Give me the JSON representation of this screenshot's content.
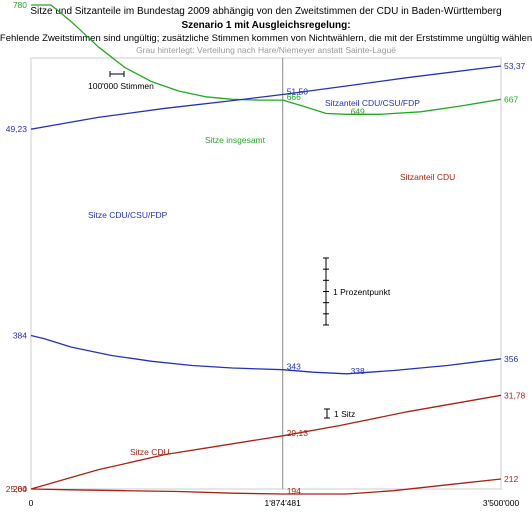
{
  "chart_data": {
    "type": "line",
    "title": "Sitze und Sitzanteile im Bundestag 2009 abhängig von den Zweitstimmen der CDU in Baden-Württemberg",
    "subtitle": "Szenario 1 mit Ausgleichsregelung:",
    "subtitle2": "Fehlende Zweitstimmen sind ungültig; zusätzliche Stimmen kommen von Nichtwählern, die mit der Erststimme ungültig wählen",
    "note": "Grau hinterlegt: Verteilung nach Hare/Niemeyer anstatt Sainte-Laguë",
    "x_ticks": [
      "0",
      "1'874'481",
      "3'500'000"
    ],
    "xlim": [
      0,
      3500000
    ],
    "marker_x": 1874481,
    "legend_stimmen": "100'000 Stimmen",
    "legend_prozent": "1 Prozentpunkt",
    "legend_sitz": "1 Sitz",
    "colors": {
      "green": "#22aa22",
      "blue": "#2233bb",
      "red": "#aa2211",
      "gray": "#bbbbbb",
      "grid": "#cccccc"
    },
    "series": [
      {
        "name": "Sitze insgesamt",
        "color": "#22aa22",
        "unit": "seats",
        "points": [
          [
            0,
            780
          ],
          [
            150000,
            780
          ],
          [
            300000,
            760
          ],
          [
            500000,
            730
          ],
          [
            700000,
            705
          ],
          [
            900000,
            688
          ],
          [
            1100000,
            677
          ],
          [
            1300000,
            670
          ],
          [
            1500000,
            667
          ],
          [
            1700000,
            666
          ],
          [
            1874481,
            666
          ],
          [
            2000000,
            660
          ],
          [
            2200000,
            650
          ],
          [
            2350000,
            649
          ],
          [
            2600000,
            649
          ],
          [
            2900000,
            652
          ],
          [
            3200000,
            659
          ],
          [
            3500000,
            667
          ]
        ],
        "labels": [
          {
            "text": "780",
            "x": 0,
            "y": 780
          },
          {
            "text": "666",
            "x": 1874481,
            "y": 666
          },
          {
            "text": "649",
            "x": 2350000,
            "y": 649
          },
          {
            "text": "667",
            "x": 3500000,
            "y": 667
          }
        ]
      },
      {
        "name": "Sitze CDU/CSU/FDP",
        "color": "#2233bb",
        "unit": "seats",
        "points": [
          [
            0,
            384
          ],
          [
            100000,
            380
          ],
          [
            300000,
            370
          ],
          [
            600000,
            360
          ],
          [
            900000,
            353
          ],
          [
            1200000,
            348
          ],
          [
            1500000,
            345
          ],
          [
            1874481,
            343
          ],
          [
            2100000,
            340
          ],
          [
            2350000,
            338
          ],
          [
            2700000,
            342
          ],
          [
            3100000,
            348
          ],
          [
            3500000,
            356
          ]
        ],
        "labels": [
          {
            "text": "384",
            "x": 0,
            "y": 384
          },
          {
            "text": "343",
            "x": 1874481,
            "y": 343
          },
          {
            "text": "338",
            "x": 2350000,
            "y": 338
          },
          {
            "text": "356",
            "x": 3500000,
            "y": 356
          }
        ]
      },
      {
        "name": "Sitze CDU",
        "color": "#aa2211",
        "unit": "seats",
        "points": [
          [
            0,
            200
          ],
          [
            300000,
            199
          ],
          [
            700000,
            198
          ],
          [
            1100000,
            197
          ],
          [
            1500000,
            195
          ],
          [
            1874481,
            194
          ],
          [
            2300000,
            194
          ],
          [
            2350000,
            194
          ],
          [
            2700000,
            198
          ],
          [
            3100000,
            205
          ],
          [
            3500000,
            212
          ]
        ],
        "labels": [
          {
            "text": "200",
            "x": 0,
            "y": 200
          },
          {
            "text": "194",
            "x": 1874481,
            "y": 194
          },
          {
            "text": "212",
            "x": 3500000,
            "y": 212
          }
        ]
      },
      {
        "name": "Sitzanteil CDU/CSU/FDP",
        "color": "#2233bb",
        "unit": "percent",
        "points": [
          [
            0,
            49.23
          ],
          [
            500000,
            50.0
          ],
          [
            1000000,
            50.6
          ],
          [
            1500000,
            51.1
          ],
          [
            1874481,
            51.5
          ],
          [
            2300000,
            52.0
          ],
          [
            2800000,
            52.6
          ],
          [
            3500000,
            53.37
          ]
        ],
        "labels": [
          {
            "text": "49,23",
            "x": 0,
            "y": 49.23
          },
          {
            "text": "51,50",
            "x": 1874481,
            "y": 51.5
          },
          {
            "text": "53,37",
            "x": 3500000,
            "y": 53.37
          }
        ]
      },
      {
        "name": "Sitzanteil CDU",
        "color": "#aa2211",
        "unit": "percent",
        "points": [
          [
            0,
            25.64
          ],
          [
            500000,
            26.9
          ],
          [
            1000000,
            27.9
          ],
          [
            1500000,
            28.6
          ],
          [
            1874481,
            29.13
          ],
          [
            2300000,
            29.8
          ],
          [
            2800000,
            30.7
          ],
          [
            3500000,
            31.78
          ]
        ],
        "labels": [
          {
            "text": "25,64",
            "x": 0,
            "y": 25.64
          },
          {
            "text": "29,13",
            "x": 1874481,
            "y": 29.13
          },
          {
            "text": "31,78",
            "x": 3500000,
            "y": 31.78
          }
        ]
      }
    ]
  }
}
